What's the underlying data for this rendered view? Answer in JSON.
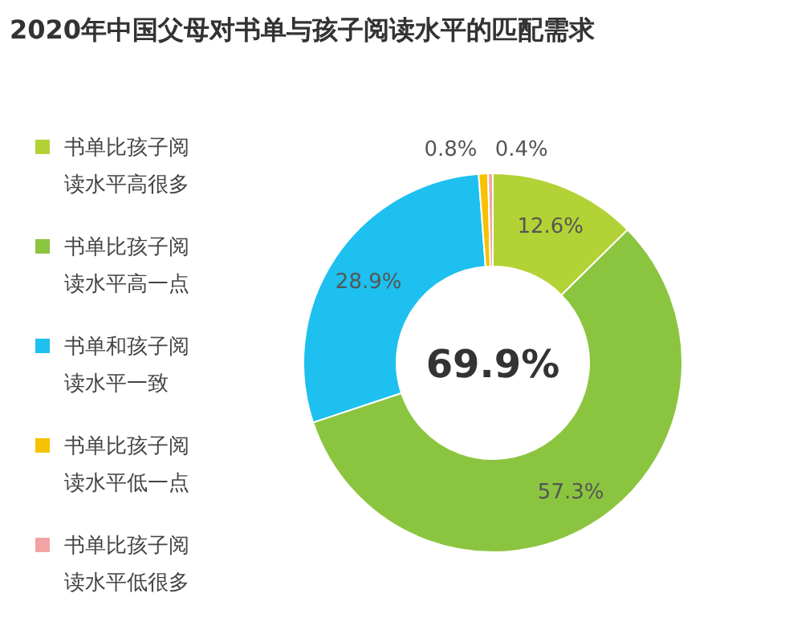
{
  "chart_data": {
    "type": "donut",
    "title": "2020年中国父母对书单与孩子阅读水平的匹配需求",
    "categories": [
      "书单比孩子阅读水平高很多",
      "书单比孩子阅读水平高一点",
      "书单和孩子阅读水平一致",
      "书单比孩子阅读水平低一点",
      "书单比孩子阅读水平低很多"
    ],
    "values": [
      12.6,
      57.3,
      28.9,
      0.8,
      0.4
    ],
    "colors": [
      "#b3d235",
      "#8bc540",
      "#1dc0ee",
      "#f6c200",
      "#f2a3a3"
    ],
    "value_labels": [
      "12.6%",
      "57.3%",
      "28.9%",
      "0.8%",
      "0.4%"
    ],
    "annotations": [
      "69.9%"
    ],
    "legend": "left"
  }
}
